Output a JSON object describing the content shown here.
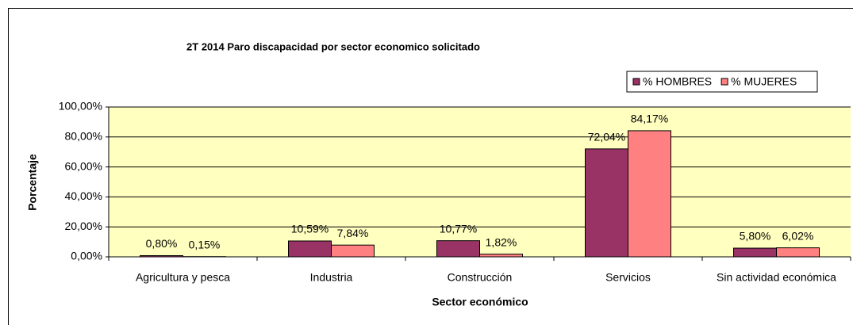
{
  "chart_data": {
    "type": "bar",
    "title": "2T 2014 Paro discapacidad por sector economico solicitado",
    "x_label": "Sector económico",
    "y_label": "Porcentaje",
    "categories": [
      "Agricultura y pesca",
      "Industria",
      "Construcción",
      "Servicios",
      "Sin actividad económica"
    ],
    "series": [
      {
        "name": "% HOMBRES",
        "color": "#993366",
        "values": [
          0.8,
          10.59,
          10.77,
          72.04,
          5.8
        ],
        "value_labels": [
          "0,80%",
          "10,59%",
          "10,77%",
          "72,04%",
          "5,80%"
        ]
      },
      {
        "name": "% MUJERES",
        "color": "#FF8080",
        "values": [
          0.15,
          7.84,
          1.82,
          84.17,
          6.02
        ],
        "value_labels": [
          "0,15%",
          "7,84%",
          "1,82%",
          "84,17%",
          "6,02%"
        ]
      }
    ],
    "ylim": [
      0,
      100
    ],
    "yticks": [
      {
        "value": 0,
        "label": "0,00%"
      },
      {
        "value": 20,
        "label": "20,00%"
      },
      {
        "value": 40,
        "label": "40,00%"
      },
      {
        "value": 60,
        "label": "60,00%"
      },
      {
        "value": 80,
        "label": "80,00%"
      },
      {
        "value": 100,
        "label": "100,00%"
      }
    ],
    "grid": true,
    "legend": "top-right",
    "plot_background": "#FFFFC0"
  }
}
